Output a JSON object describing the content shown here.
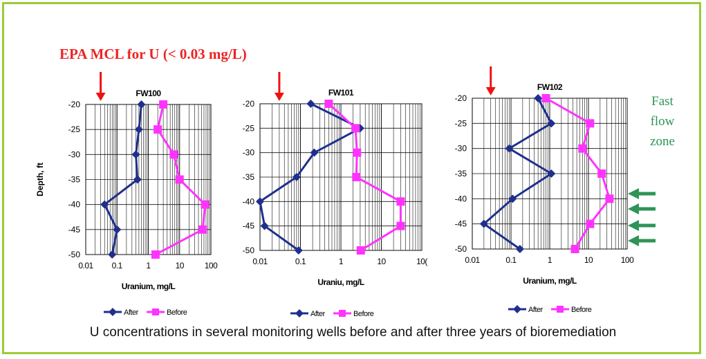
{
  "caption": "U concentrations in several monitoring wells before and after three years of bioremediation",
  "annotations": {
    "epa_title": "EPA MCL for U (< 0.03 mg/L)",
    "epa_mcl_value": 0.03,
    "zone_lines": [
      "Fast",
      "flow",
      "zone"
    ]
  },
  "colors": {
    "after": "#1f2f8c",
    "before": "#ff33ff",
    "epa_arrow": "#ee1111",
    "zone": "#2e9457",
    "border": "#99cc33",
    "grid": "#111111"
  },
  "icons": {
    "epa_marker": "red-down-arrow",
    "flow_marker": "green-left-arrow"
  },
  "chart_data": [
    {
      "type": "line",
      "title": "FW100",
      "xlabel": "Uranium, mg/L",
      "ylabel": "Depth, ft",
      "x_scale": "log",
      "xlim": [
        0.01,
        100
      ],
      "ylim": [
        -50,
        -20
      ],
      "x_ticks": [
        "0.01",
        "0.1",
        "1",
        "10",
        "100"
      ],
      "y_ticks": [
        "-20",
        "-25",
        "-30",
        "-35",
        "-40",
        "-45",
        "-50"
      ],
      "legend": [
        "After",
        "Before"
      ],
      "legend_position": "bottom",
      "grid": true,
      "series": [
        {
          "name": "After",
          "marker": "diamond",
          "points": [
            [
              0.6,
              -20
            ],
            [
              0.5,
              -25
            ],
            [
              0.4,
              -30
            ],
            [
              0.45,
              -35
            ],
            [
              0.04,
              -40
            ],
            [
              0.1,
              -45
            ],
            [
              0.07,
              -50
            ]
          ]
        },
        {
          "name": "Before",
          "marker": "square",
          "points": [
            [
              3,
              -20
            ],
            [
              2,
              -25
            ],
            [
              6.5,
              -30
            ],
            [
              10,
              -35
            ],
            [
              65,
              -40
            ],
            [
              55,
              -45
            ],
            [
              1.7,
              -50
            ]
          ]
        }
      ]
    },
    {
      "type": "line",
      "title": "FW101",
      "xlabel": "Uraniu, mg/L",
      "ylabel": "",
      "x_scale": "log",
      "xlim": [
        0.01,
        100
      ],
      "ylim": [
        -50,
        -20
      ],
      "x_ticks": [
        "0.01",
        "0.1",
        "1",
        "10",
        "10("
      ],
      "y_ticks": [
        "-20",
        "-25",
        "-30",
        "-35",
        "-40",
        "-45",
        "-50"
      ],
      "legend": [
        "After",
        "Before"
      ],
      "legend_position": "bottom",
      "grid": true,
      "series": [
        {
          "name": "After",
          "marker": "diamond",
          "points": [
            [
              0.18,
              -20
            ],
            [
              3,
              -25
            ],
            [
              0.22,
              -30
            ],
            [
              0.08,
              -35
            ],
            [
              0.01,
              -40
            ],
            [
              0.013,
              -45
            ],
            [
              0.09,
              -50
            ]
          ]
        },
        {
          "name": "Before",
          "marker": "square",
          "points": [
            [
              0.5,
              -20
            ],
            [
              2.3,
              -25
            ],
            [
              2.5,
              -30
            ],
            [
              2.4,
              -35
            ],
            [
              30,
              -40
            ],
            [
              30,
              -45
            ],
            [
              3.1,
              -50
            ]
          ]
        }
      ]
    },
    {
      "type": "line",
      "title": "FW102",
      "xlabel": "Uranium, mg/L",
      "ylabel": "",
      "x_scale": "log",
      "xlim": [
        0.01,
        100
      ],
      "ylim": [
        -50,
        -20
      ],
      "x_ticks": [
        "0.01",
        "0.1",
        "1",
        "10",
        "100"
      ],
      "y_ticks": [
        "-20",
        "-25",
        "-30",
        "-35",
        "-40",
        "-45",
        "-50"
      ],
      "legend": [
        "After",
        "Before"
      ],
      "legend_position": "bottom",
      "grid": true,
      "series": [
        {
          "name": "After",
          "marker": "diamond",
          "points": [
            [
              0.5,
              -20
            ],
            [
              1.1,
              -25
            ],
            [
              0.09,
              -30
            ],
            [
              1.1,
              -35
            ],
            [
              0.11,
              -40
            ],
            [
              0.02,
              -45
            ],
            [
              0.17,
              -50
            ]
          ]
        },
        {
          "name": "Before",
          "marker": "square",
          "points": [
            [
              0.8,
              -20
            ],
            [
              11,
              -25
            ],
            [
              7,
              -30
            ],
            [
              22,
              -35
            ],
            [
              35,
              -40
            ],
            [
              11,
              -45
            ],
            [
              4.5,
              -50
            ]
          ]
        }
      ]
    }
  ]
}
